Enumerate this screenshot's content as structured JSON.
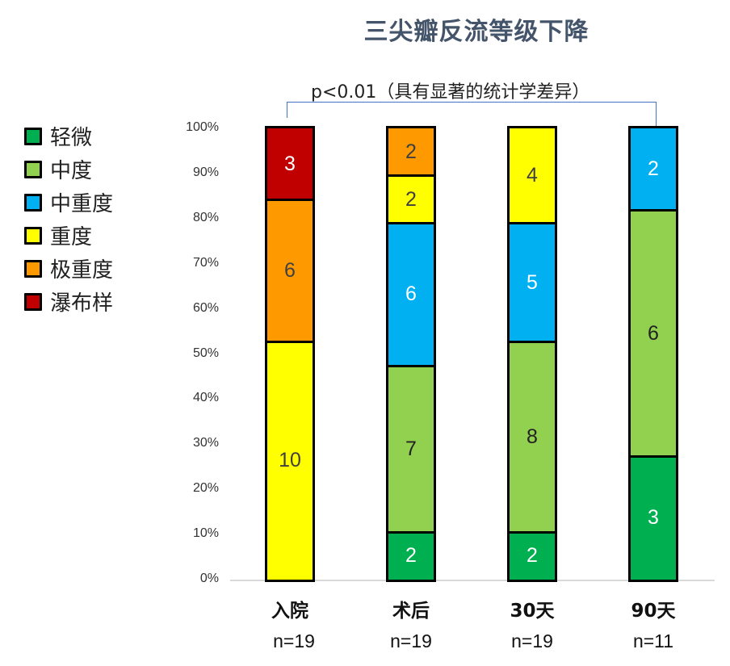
{
  "chart_data": {
    "type": "bar",
    "stacked": true,
    "normalized_percent": true,
    "title": "三尖瓣反流等级下降",
    "annotation": "p<0.01（具有显著的统计学差异）",
    "xlabel": "",
    "ylabel": "",
    "ylim": [
      0,
      100
    ],
    "yticks": [
      "0%",
      "10%",
      "20%",
      "30%",
      "40%",
      "50%",
      "60%",
      "70%",
      "80%",
      "90%",
      "100%"
    ],
    "categories": [
      "入院",
      "术后",
      "30天",
      "90天"
    ],
    "sample_sizes": [
      "n=19",
      "n=19",
      "n=19",
      "n=11"
    ],
    "legend_position": "left",
    "series": [
      {
        "name": "轻微",
        "color": "#00B050",
        "label_color": "#FFFFFF",
        "values": [
          0,
          2,
          2,
          3
        ]
      },
      {
        "name": "中度",
        "color": "#92D050",
        "label_color": "#222222",
        "values": [
          0,
          7,
          8,
          6
        ]
      },
      {
        "name": "中重度",
        "color": "#00B0F0",
        "label_color": "#FFFFFF",
        "values": [
          0,
          6,
          5,
          2
        ]
      },
      {
        "name": "重度",
        "color": "#FFFF00",
        "label_color": "#404040",
        "values": [
          10,
          2,
          4,
          0
        ]
      },
      {
        "name": "极重度",
        "color": "#FF9900",
        "label_color": "#404040",
        "values": [
          6,
          2,
          0,
          0
        ]
      },
      {
        "name": "瀑布样",
        "color": "#C00000",
        "label_color": "#FFFFFF",
        "values": [
          3,
          0,
          0,
          0
        ]
      }
    ]
  },
  "title": "三尖瓣反流等级下降",
  "annotation": "p<0.01（具有显著的统计学差异）",
  "legend": [
    "轻微",
    "中度",
    "中重度",
    "重度",
    "极重度",
    "瀑布样"
  ],
  "categories": [
    "入院",
    "术后",
    "30天",
    "90天"
  ],
  "sample_sizes": [
    "n=19",
    "n=19",
    "n=19",
    "n=11"
  ],
  "yticks": [
    "0%",
    "10%",
    "20%",
    "30%",
    "40%",
    "50%",
    "60%",
    "70%",
    "80%",
    "90%",
    "100%"
  ]
}
